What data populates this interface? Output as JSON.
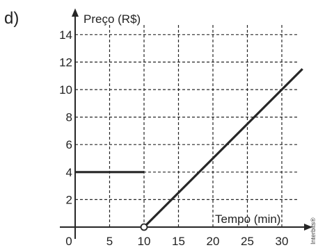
{
  "panel_label": "d)",
  "credit": "Interbits®",
  "colors": {
    "line": "#262626",
    "grid": "#262626",
    "axis": "#262626",
    "background": "#ffffff"
  },
  "chart_data": {
    "type": "line",
    "title": "",
    "xlabel": "Tempo (min)",
    "ylabel": "Preço (R$)",
    "xlim": [
      0,
      30
    ],
    "ylim": [
      0,
      14
    ],
    "xticks": [
      0,
      5,
      10,
      15,
      20,
      25,
      30
    ],
    "yticks": [
      2,
      4,
      6,
      8,
      10,
      12,
      14
    ],
    "x_tick_labels": [
      "0",
      "5",
      "10",
      "15",
      "20",
      "25",
      "30"
    ],
    "y_tick_labels": [
      "2",
      "4",
      "6",
      "8",
      "10",
      "12",
      "14"
    ],
    "grid": true,
    "grid_style": "dashed",
    "series": [
      {
        "x": [
          0,
          10
        ],
        "y": [
          4,
          4
        ]
      },
      {
        "x": [
          10,
          30
        ],
        "y": [
          0,
          10
        ]
      }
    ],
    "annotations": [
      {
        "type": "open_point",
        "x": 10,
        "y": 0
      }
    ]
  }
}
